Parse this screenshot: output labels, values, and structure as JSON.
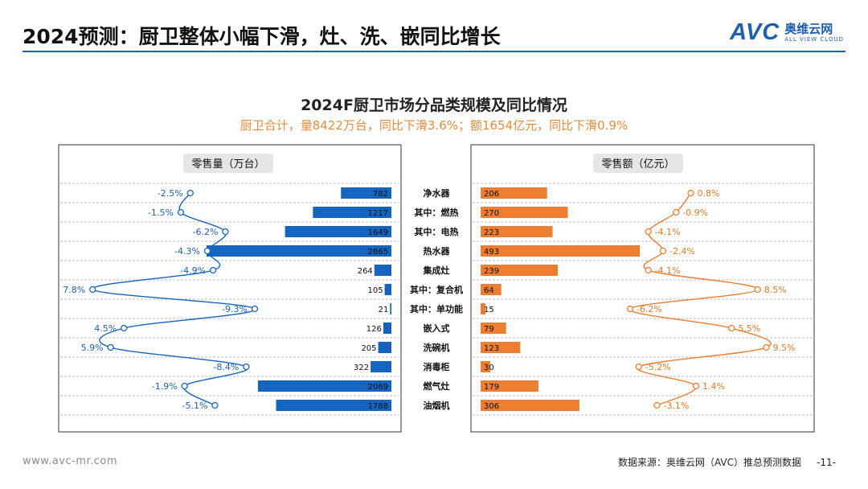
{
  "page": {
    "title": "2024预测：厨卫整体小幅下滑，灶、洗、嵌同比增长",
    "footer_url": "www.avc-mr.com",
    "footer_source": "数据来源：奥维云网（AVC）推总预测数据",
    "page_number": "-11-"
  },
  "logo": {
    "mark": "AVC",
    "cn": "奥维云网",
    "en": "ALL VIEW CLOUD"
  },
  "colors": {
    "accent_blue": "#1f5fb0",
    "bar_blue": "#1565c0",
    "bar_orange": "#ed7d31",
    "subtitle_orange": "#e98a3b"
  },
  "chart_data": {
    "type": "bar",
    "title": "2024F厨卫市场分品类规模及同比情况",
    "subtitle": "厨卫合计，量8422万台，同比下滑3.6%；额1654亿元，同比下滑0.9%",
    "categories": [
      "净水器",
      "其中：燃热",
      "其中：电热",
      "热水器",
      "集成灶",
      "其中：复合机",
      "其中：单功能",
      "嵌入式",
      "洗碗机",
      "消毒柜",
      "燃气灶",
      "油烟机"
    ],
    "volume": {
      "label": "零售量（万台）",
      "values": [
        782,
        1217,
        1649,
        2865,
        264,
        105,
        21,
        126,
        205,
        322,
        2069,
        1788
      ],
      "yoy": [
        -2.5,
        -1.5,
        -6.2,
        -4.3,
        -4.9,
        7.8,
        -9.3,
        4.5,
        5.9,
        -8.4,
        -1.9,
        -5.1
      ],
      "yoy_labels": [
        "-2.5%",
        "-1.5%",
        "-6.2%",
        "-4.3%",
        "-4.9%",
        "7.8%",
        "-9.3%",
        "4.5%",
        "5.9%",
        "-8.4%",
        "-1.9%",
        "-5.1%"
      ]
    },
    "amount": {
      "label": "零售额（亿元）",
      "values": [
        206,
        270,
        223,
        493,
        239,
        64,
        15,
        79,
        123,
        30,
        179,
        306
      ],
      "yoy": [
        0.8,
        -0.9,
        -4.1,
        -2.4,
        -4.1,
        8.5,
        -6.2,
        5.5,
        9.5,
        -5.2,
        1.4,
        -3.1
      ],
      "yoy_labels": [
        "0.8%",
        "-0.9%",
        "-4.1%",
        "-2.4%",
        "-4.1%",
        "8.5%",
        "-6.2%",
        "5.5%",
        "9.5%",
        "-5.2%",
        "1.4%",
        "-3.1%"
      ]
    }
  }
}
